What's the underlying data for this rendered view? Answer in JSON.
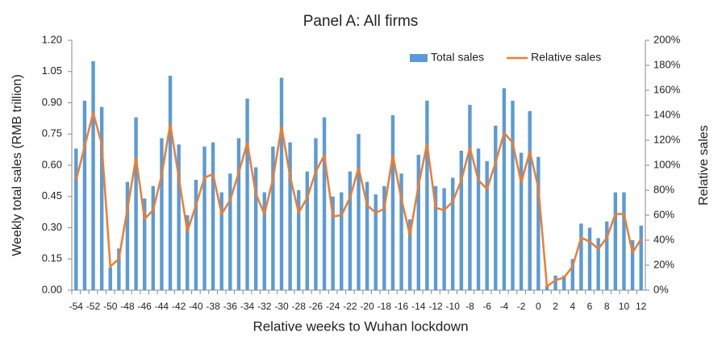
{
  "chart_data": {
    "type": "bar-line",
    "title": "Panel A: All firms",
    "x_label": "Relative weeks to Wuhan lockdown",
    "y_label": "Weekly total sales (RMB trillion)",
    "y2_label": "Relative sales",
    "categories": [
      -54,
      null,
      -52,
      null,
      -50,
      null,
      -48,
      null,
      -46,
      null,
      -44,
      null,
      -42,
      null,
      -40,
      null,
      -38,
      null,
      -36,
      null,
      -34,
      null,
      -32,
      null,
      -30,
      null,
      -28,
      null,
      -26,
      null,
      -24,
      null,
      -22,
      null,
      -20,
      null,
      -18,
      null,
      -16,
      null,
      -14,
      null,
      -12,
      null,
      -10,
      null,
      -8,
      null,
      -6,
      null,
      -4,
      null,
      -2,
      null,
      0,
      null,
      2,
      null,
      4,
      null,
      6,
      null,
      8,
      null,
      10,
      null,
      12
    ],
    "series": [
      {
        "name": "Total sales",
        "type": "bar",
        "color": "#5b9bd5",
        "axis": "y",
        "values": [
          0.68,
          0.91,
          1.1,
          0.88,
          0.11,
          0.2,
          0.52,
          0.83,
          0.44,
          0.5,
          0.73,
          1.03,
          0.7,
          0.36,
          0.53,
          0.69,
          0.71,
          0.47,
          0.56,
          0.73,
          0.92,
          0.59,
          0.47,
          0.69,
          1.02,
          0.71,
          0.48,
          0.57,
          0.73,
          0.83,
          0.45,
          0.47,
          0.57,
          0.75,
          0.52,
          0.46,
          0.5,
          0.84,
          0.56,
          0.34,
          0.65,
          0.91,
          0.5,
          0.49,
          0.54,
          0.67,
          0.89,
          0.68,
          0.62,
          0.79,
          0.97,
          0.91,
          0.66,
          0.86,
          0.64,
          0.02,
          0.07,
          0.07,
          0.15,
          0.32,
          0.3,
          0.25,
          0.33,
          0.47,
          0.47,
          0.24,
          0.31
        ]
      },
      {
        "name": "Relative sales",
        "type": "line",
        "color": "#ed7d31",
        "axis": "y2",
        "values": [
          88,
          115,
          142,
          117,
          19,
          25,
          65,
          106,
          57,
          64,
          92,
          133,
          90,
          47,
          68,
          90,
          93,
          61,
          72,
          94,
          118,
          77,
          61,
          89,
          131,
          91,
          62,
          74,
          95,
          108,
          59,
          60,
          74,
          98,
          68,
          62,
          65,
          108,
          73,
          44,
          84,
          117,
          66,
          64,
          71,
          88,
          114,
          88,
          81,
          102,
          126,
          118,
          86,
          111,
          82,
          3,
          8,
          10,
          19,
          42,
          39,
          33,
          42,
          61,
          61,
          30,
          41
        ]
      }
    ],
    "ylim": [
      0,
      1.2
    ],
    "yticks": [
      {
        "value": 0,
        "label": "0.00"
      },
      {
        "value": 0.15,
        "label": "0.15"
      },
      {
        "value": 0.3,
        "label": "0.30"
      },
      {
        "value": 0.45,
        "label": "0.45"
      },
      {
        "value": 0.6,
        "label": "0.60"
      },
      {
        "value": 0.75,
        "label": "0.75"
      },
      {
        "value": 0.9,
        "label": "0.90"
      },
      {
        "value": 1.05,
        "label": "1.05"
      },
      {
        "value": 1.2,
        "label": "1.20"
      }
    ],
    "y2lim": [
      0,
      200
    ],
    "y2ticks": [
      {
        "value": 0,
        "label": "0%"
      },
      {
        "value": 20,
        "label": "20%"
      },
      {
        "value": 40,
        "label": "40%"
      },
      {
        "value": 60,
        "label": "60%"
      },
      {
        "value": 80,
        "label": "80%"
      },
      {
        "value": 100,
        "label": "100%"
      },
      {
        "value": 120,
        "label": "120%"
      },
      {
        "value": 140,
        "label": "140%"
      },
      {
        "value": 160,
        "label": "160%"
      },
      {
        "value": 180,
        "label": "180%"
      },
      {
        "value": 200,
        "label": "200%"
      }
    ],
    "grid": false,
    "legend": "top-right"
  }
}
